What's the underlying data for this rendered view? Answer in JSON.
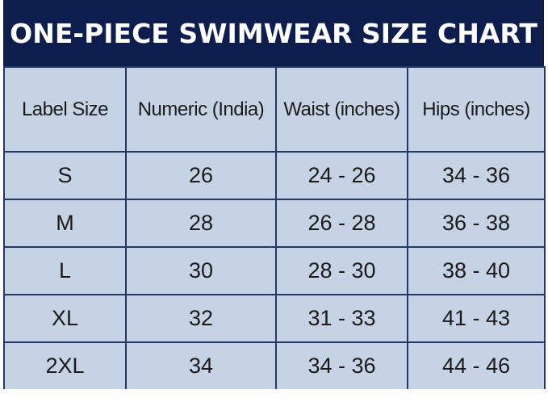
{
  "title": "ONE-PIECE SWIMWEAR SIZE CHART",
  "colors": {
    "header_bg": "#0d1d4d",
    "table_bg": "#c6d3e4",
    "grid_line": "#243866",
    "text": "#1a1a1a"
  },
  "chart_data": {
    "type": "table",
    "title": "ONE-PIECE SWIMWEAR SIZE CHART",
    "columns": [
      "Label Size",
      "Numeric (India)",
      "Waist (inches)",
      "Hips (inches)"
    ],
    "rows": [
      [
        "S",
        "26",
        "24 - 26",
        "34 - 36"
      ],
      [
        "M",
        "28",
        "26 - 28",
        "36 - 38"
      ],
      [
        "L",
        "30",
        "28 - 30",
        "38 - 40"
      ],
      [
        "XL",
        "32",
        "31 - 33",
        "41 - 43"
      ],
      [
        "2XL",
        "34",
        "34 - 36",
        "44 - 46"
      ]
    ]
  }
}
